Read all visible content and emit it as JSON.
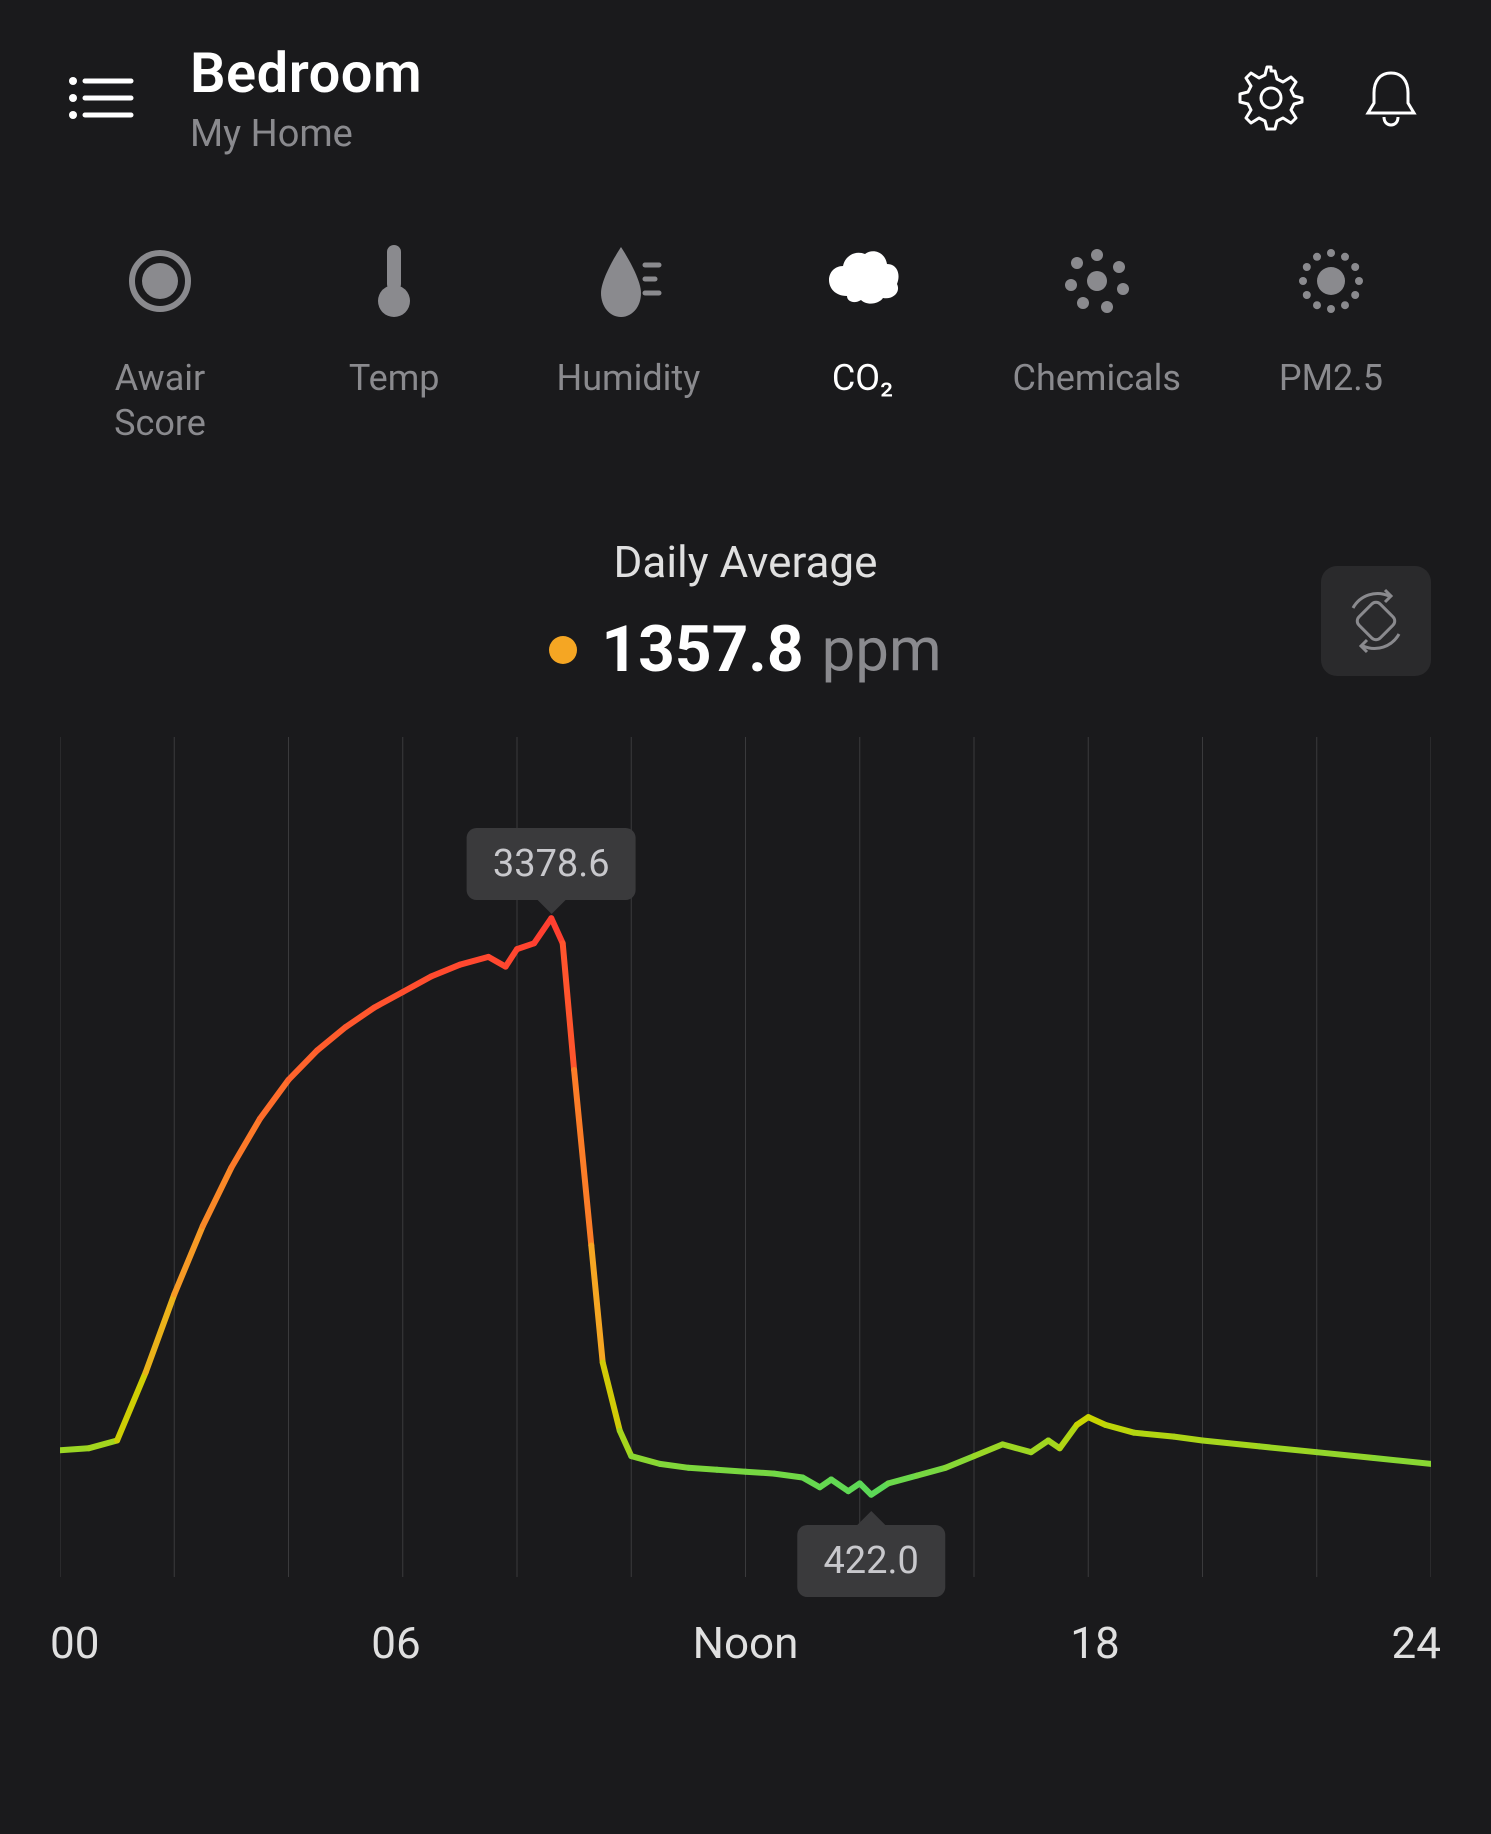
{
  "header": {
    "room_title": "Bedroom",
    "home_subtitle": "My Home"
  },
  "tabs": [
    {
      "id": "awair",
      "label": "Awair\nScore",
      "icon": "awair",
      "active": false
    },
    {
      "id": "temp",
      "label": "Temp",
      "icon": "temp",
      "active": false
    },
    {
      "id": "humidity",
      "label": "Humidity",
      "icon": "humidity",
      "active": false
    },
    {
      "id": "co2",
      "label": "CO₂",
      "icon": "co2",
      "active": true
    },
    {
      "id": "chemicals",
      "label": "Chemicals",
      "icon": "chemicals",
      "active": false
    },
    {
      "id": "pm25",
      "label": "PM2.5",
      "icon": "pm25",
      "active": false
    }
  ],
  "summary": {
    "title": "Daily Average",
    "value": "1357.8",
    "unit": "ppm",
    "status_color": "#f5a623"
  },
  "x_axis_labels": [
    "00",
    "06",
    "Noon",
    "18",
    "24"
  ],
  "icon_colors": {
    "inactive": "#8a8a8e",
    "active": "#ffffff",
    "header_stroke": "#ffffff"
  },
  "chart": {
    "type": "line",
    "background_color": "#1a1a1c",
    "grid_color": "#3a3a3c",
    "line_width": 6,
    "x_range": [
      0,
      24
    ],
    "y_range": [
      0,
      4000
    ],
    "data": [
      {
        "t": 0.0,
        "v": 650
      },
      {
        "t": 0.5,
        "v": 660
      },
      {
        "t": 1.0,
        "v": 700
      },
      {
        "t": 1.5,
        "v": 1050
      },
      {
        "t": 2.0,
        "v": 1450
      },
      {
        "t": 2.5,
        "v": 1800
      },
      {
        "t": 3.0,
        "v": 2100
      },
      {
        "t": 3.5,
        "v": 2350
      },
      {
        "t": 4.0,
        "v": 2550
      },
      {
        "t": 4.5,
        "v": 2700
      },
      {
        "t": 5.0,
        "v": 2820
      },
      {
        "t": 5.5,
        "v": 2920
      },
      {
        "t": 6.0,
        "v": 3000
      },
      {
        "t": 6.5,
        "v": 3080
      },
      {
        "t": 7.0,
        "v": 3140
      },
      {
        "t": 7.5,
        "v": 3180
      },
      {
        "t": 7.8,
        "v": 3130
      },
      {
        "t": 8.0,
        "v": 3220
      },
      {
        "t": 8.3,
        "v": 3250
      },
      {
        "t": 8.6,
        "v": 3378.6
      },
      {
        "t": 8.8,
        "v": 3250
      },
      {
        "t": 9.0,
        "v": 2600
      },
      {
        "t": 9.3,
        "v": 1700
      },
      {
        "t": 9.5,
        "v": 1100
      },
      {
        "t": 9.8,
        "v": 750
      },
      {
        "t": 10.0,
        "v": 620
      },
      {
        "t": 10.5,
        "v": 580
      },
      {
        "t": 11.0,
        "v": 560
      },
      {
        "t": 11.5,
        "v": 550
      },
      {
        "t": 12.0,
        "v": 540
      },
      {
        "t": 12.5,
        "v": 530
      },
      {
        "t": 13.0,
        "v": 510
      },
      {
        "t": 13.3,
        "v": 460
      },
      {
        "t": 13.5,
        "v": 500
      },
      {
        "t": 13.8,
        "v": 440
      },
      {
        "t": 14.0,
        "v": 480
      },
      {
        "t": 14.2,
        "v": 422
      },
      {
        "t": 14.5,
        "v": 480
      },
      {
        "t": 15.0,
        "v": 520
      },
      {
        "t": 15.5,
        "v": 560
      },
      {
        "t": 16.0,
        "v": 620
      },
      {
        "t": 16.5,
        "v": 680
      },
      {
        "t": 17.0,
        "v": 640
      },
      {
        "t": 17.3,
        "v": 700
      },
      {
        "t": 17.5,
        "v": 660
      },
      {
        "t": 17.8,
        "v": 780
      },
      {
        "t": 18.0,
        "v": 820
      },
      {
        "t": 18.3,
        "v": 780
      },
      {
        "t": 18.8,
        "v": 740
      },
      {
        "t": 19.5,
        "v": 720
      },
      {
        "t": 20.0,
        "v": 700
      },
      {
        "t": 21.0,
        "v": 670
      },
      {
        "t": 22.0,
        "v": 640
      },
      {
        "t": 23.0,
        "v": 610
      },
      {
        "t": 24.0,
        "v": 580
      }
    ],
    "color_stops": [
      {
        "value": 400,
        "color": "#4cd964"
      },
      {
        "value": 800,
        "color": "#c8d400"
      },
      {
        "value": 1400,
        "color": "#f5a623"
      },
      {
        "value": 2500,
        "color": "#ff6a2b"
      },
      {
        "value": 3400,
        "color": "#ff3b30"
      }
    ],
    "tooltips": [
      {
        "t": 8.6,
        "v": 3378.6,
        "label": "3378.6",
        "placement": "top"
      },
      {
        "t": 14.2,
        "v": 422.0,
        "label": "422.0",
        "placement": "bottom"
      }
    ],
    "grid_ticks_hours": [
      0,
      2,
      4,
      6,
      8,
      10,
      12,
      14,
      16,
      18,
      20,
      22,
      24
    ]
  }
}
